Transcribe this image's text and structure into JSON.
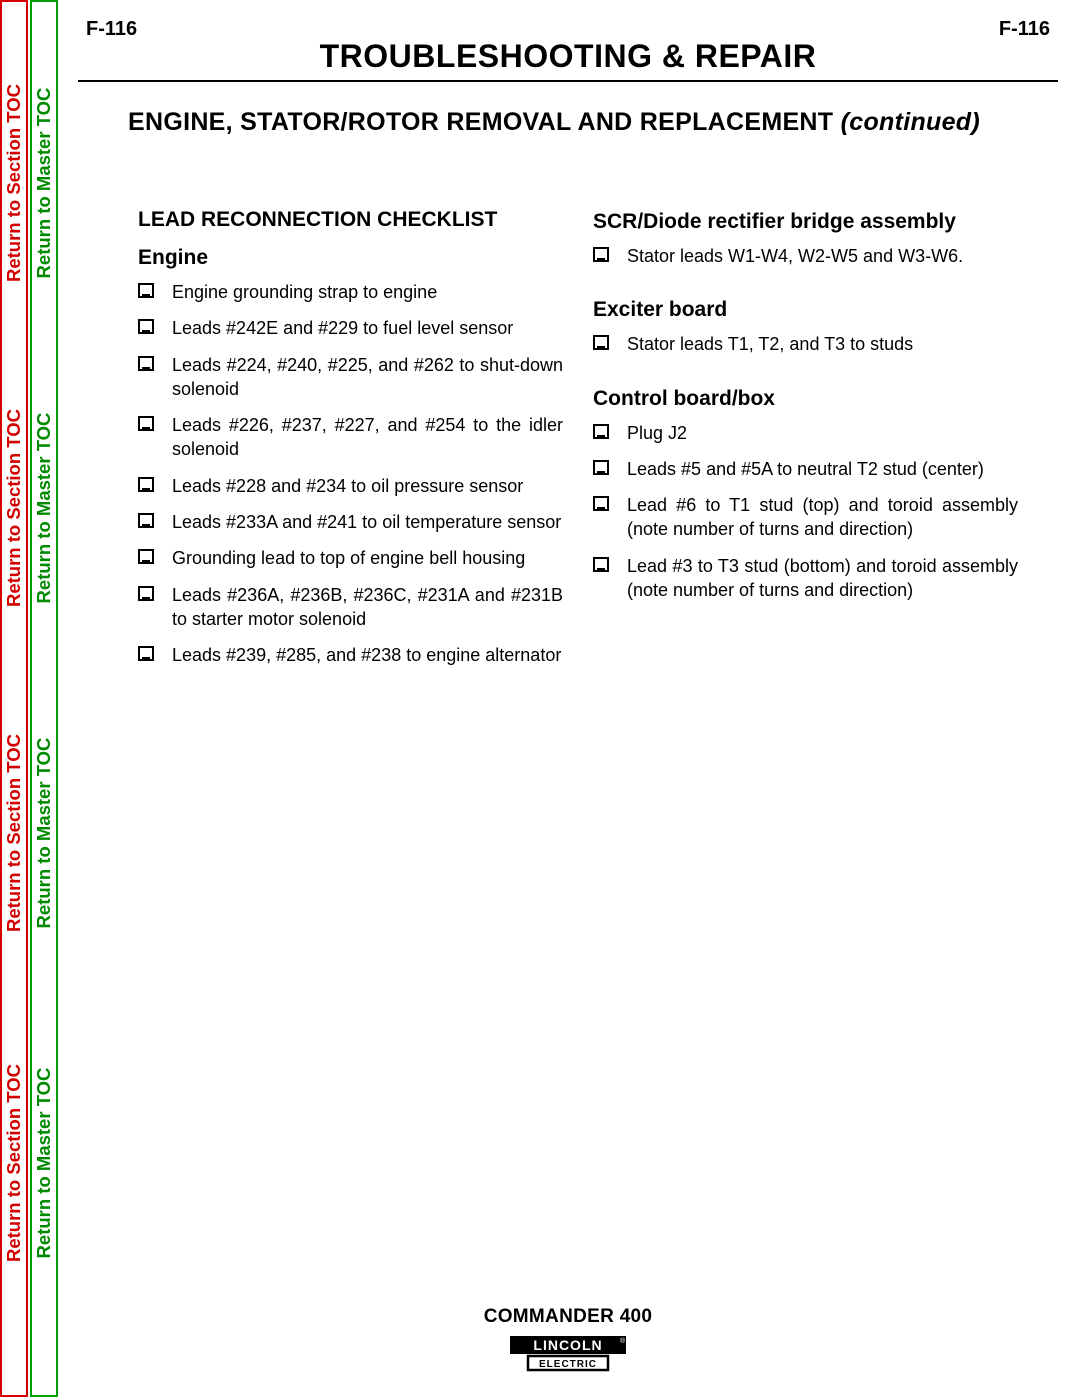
{
  "page_number": "F-116",
  "chapter_title": "TROUBLESHOOTING & REPAIR",
  "section_title_main": "ENGINE, STATOR/ROTOR REMOVAL AND REPLACEMENT ",
  "section_title_cont": "(continued)",
  "side_tabs": {
    "section_label": "Return to Section TOC",
    "master_label": "Return to Master TOC"
  },
  "left_col": {
    "heading": "LEAD RECONNECTION CHECKLIST",
    "sub1": "Engine",
    "engine_items": [
      "Engine grounding strap to engine",
      "Leads #242E and #229 to fuel level sensor",
      "Leads #224, #240, #225, and #262 to shut-down solenoid",
      "Leads #226, #237, #227, and #254 to the idler solenoid",
      "Leads #228 and #234 to oil pressure sensor",
      "Leads #233A and #241 to oil temperature sensor",
      "Grounding lead to top of engine bell housing",
      "Leads #236A, #236B, #236C, #231A and #231B to starter motor solenoid",
      "Leads #239, #285, and #238 to engine alternator"
    ]
  },
  "right_col": {
    "scr_heading": "SCR/Diode rectifier bridge assembly",
    "scr_items": [
      "Stator leads W1-W4, W2-W5 and W3-W6."
    ],
    "exciter_heading": "Exciter board",
    "exciter_items": [
      "Stator leads T1, T2, and T3 to studs"
    ],
    "control_heading": "Control board/box",
    "control_items": [
      "Plug J2",
      "Leads #5 and #5A to neutral T2 stud (center)",
      "Lead #6 to T1 stud (top) and toroid assembly (note number of turns and direction)",
      "Lead #3 to T3 stud (bottom) and toroid assembly (note number of turns and direction)"
    ]
  },
  "footer": {
    "product": "COMMANDER 400",
    "logo_top": "LINCOLN",
    "logo_bottom": "ELECTRIC"
  },
  "colors": {
    "red": "#d40000",
    "green": "#008a00"
  }
}
